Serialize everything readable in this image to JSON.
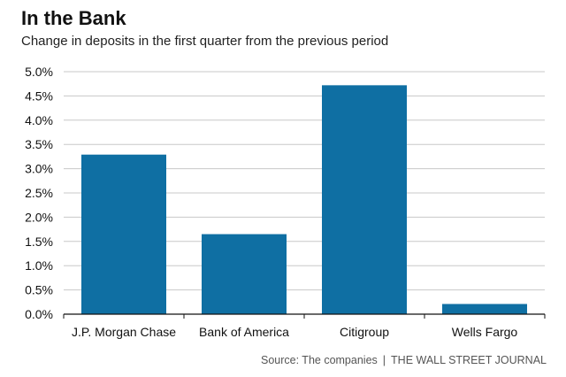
{
  "header": {
    "title": "In the Bank",
    "subtitle": "Change in deposits in the first quarter from the previous period"
  },
  "footer": {
    "source": "Source: The companies",
    "separator": "|",
    "publisher": "THE WALL STREET JOURNAL"
  },
  "colors": {
    "bar": "#0f6fa3",
    "grid": "#c8c8c8",
    "axis": "#111111"
  },
  "chart_data": {
    "type": "bar",
    "title": "In the Bank",
    "subtitle": "Change in deposits in the first quarter from the previous period",
    "xlabel": "",
    "ylabel": "",
    "categories": [
      "J.P. Morgan Chase",
      "Bank of America",
      "Citigroup",
      "Wells Fargo"
    ],
    "values": [
      3.29,
      1.65,
      4.72,
      0.21
    ],
    "ylim": [
      0,
      5
    ],
    "yticks": [
      0,
      0.5,
      1,
      1.5,
      2,
      2.5,
      3,
      3.5,
      4,
      4.5,
      5
    ],
    "ytick_labels": [
      "0.0%",
      "0.5%",
      "1.0%",
      "1.5%",
      "2.0%",
      "2.5%",
      "3.0%",
      "3.5%",
      "4.0%",
      "4.5%",
      "5.0%"
    ],
    "grid": true,
    "legend": "none"
  }
}
